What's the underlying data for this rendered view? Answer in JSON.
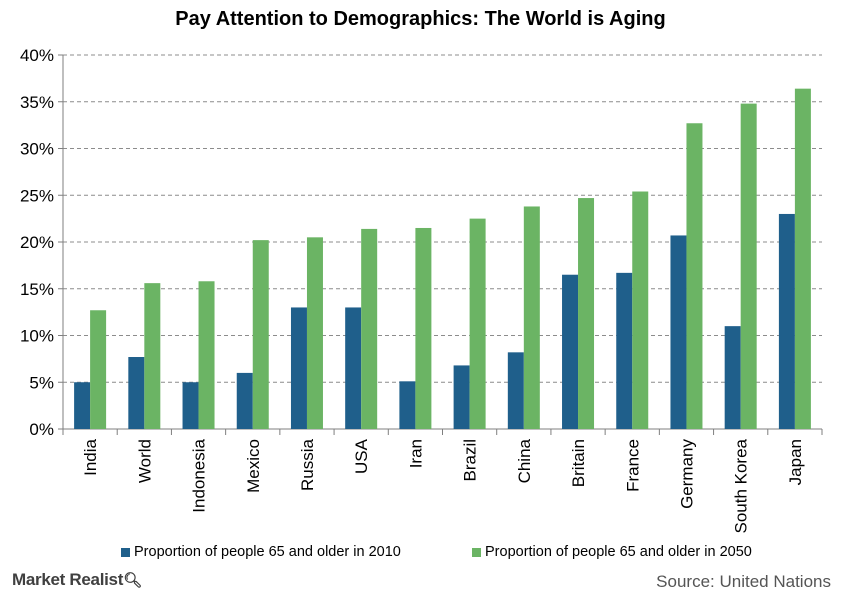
{
  "brand": {
    "name": "Market Realist",
    "icon": "magnifier-icon"
  },
  "source": "Source: United Nations",
  "colors": {
    "s2010": "#1F5F8B",
    "s2050": "#6BB464",
    "grid": "#8C8C8C",
    "axis": "#7F7F7F"
  },
  "chart_data": {
    "type": "bar",
    "title": "Pay Attention to Demographics: The World is Aging",
    "xlabel": "",
    "ylabel": "",
    "ylim": [
      0,
      40
    ],
    "y_ticks": [
      "0%",
      "5%",
      "10%",
      "15%",
      "20%",
      "25%",
      "30%",
      "35%",
      "40%"
    ],
    "grid": true,
    "legend": "bottom",
    "categories": [
      "India",
      "World",
      "Indonesia",
      "Mexico",
      "Russia",
      "USA",
      "Iran",
      "Brazil",
      "China",
      "Britain",
      "France",
      "Germany",
      "South Korea",
      "Japan"
    ],
    "series": [
      {
        "name": "Proportion of people 65 and older in 2010",
        "color": "#1F5F8B",
        "values": [
          5.0,
          7.7,
          5.0,
          6.0,
          13.0,
          13.0,
          5.1,
          6.8,
          8.2,
          16.5,
          16.7,
          20.7,
          11.0,
          23.0
        ]
      },
      {
        "name": "Proportion of people 65 and older in 2050",
        "color": "#6BB464",
        "values": [
          12.7,
          15.6,
          15.8,
          20.2,
          20.5,
          21.4,
          21.5,
          22.5,
          23.8,
          24.7,
          25.4,
          32.7,
          34.8,
          36.4
        ]
      }
    ]
  }
}
